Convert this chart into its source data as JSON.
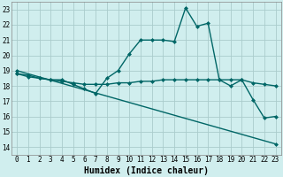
{
  "xlabel": "Humidex (Indice chaleur)",
  "ylabel": "",
  "bg_color": "#d0eeee",
  "grid_color": "#aacccc",
  "line_color": "#006666",
  "xlim": [
    -0.5,
    23.5
  ],
  "ylim": [
    13.5,
    23.5
  ],
  "xticks": [
    0,
    1,
    2,
    3,
    4,
    5,
    6,
    7,
    8,
    9,
    10,
    11,
    12,
    13,
    14,
    15,
    16,
    17,
    18,
    19,
    20,
    21,
    22,
    23
  ],
  "yticks": [
    14,
    15,
    16,
    17,
    18,
    19,
    20,
    21,
    22,
    23
  ],
  "line1_x": [
    0,
    1,
    2,
    3,
    4,
    5,
    6,
    7,
    8,
    9,
    10,
    11,
    12,
    13,
    14,
    15,
    16,
    17,
    18,
    19,
    20,
    21,
    22,
    23
  ],
  "line1_y": [
    18.8,
    18.7,
    18.5,
    18.4,
    18.4,
    18.1,
    17.8,
    17.5,
    18.5,
    19.0,
    20.1,
    21.0,
    21.0,
    21.0,
    20.9,
    23.1,
    21.9,
    22.1,
    18.4,
    18.0,
    18.4,
    17.1,
    15.9,
    16.0
  ],
  "line2_x": [
    0,
    1,
    2,
    3,
    4,
    5,
    6,
    7,
    8,
    9,
    10,
    11,
    12,
    13,
    14,
    15,
    16,
    17,
    18,
    19,
    20,
    21,
    22,
    23
  ],
  "line2_y": [
    18.8,
    18.6,
    18.5,
    18.4,
    18.3,
    18.2,
    18.1,
    18.1,
    18.1,
    18.2,
    18.2,
    18.3,
    18.3,
    18.4,
    18.4,
    18.4,
    18.4,
    18.4,
    18.4,
    18.4,
    18.4,
    18.2,
    18.1,
    18.0
  ],
  "line3_x": [
    0,
    23
  ],
  "line3_y": [
    19.0,
    14.2
  ],
  "marker_size": 2.5,
  "line_width": 1.0,
  "tick_fontsize": 5.5,
  "label_fontsize": 7.0
}
